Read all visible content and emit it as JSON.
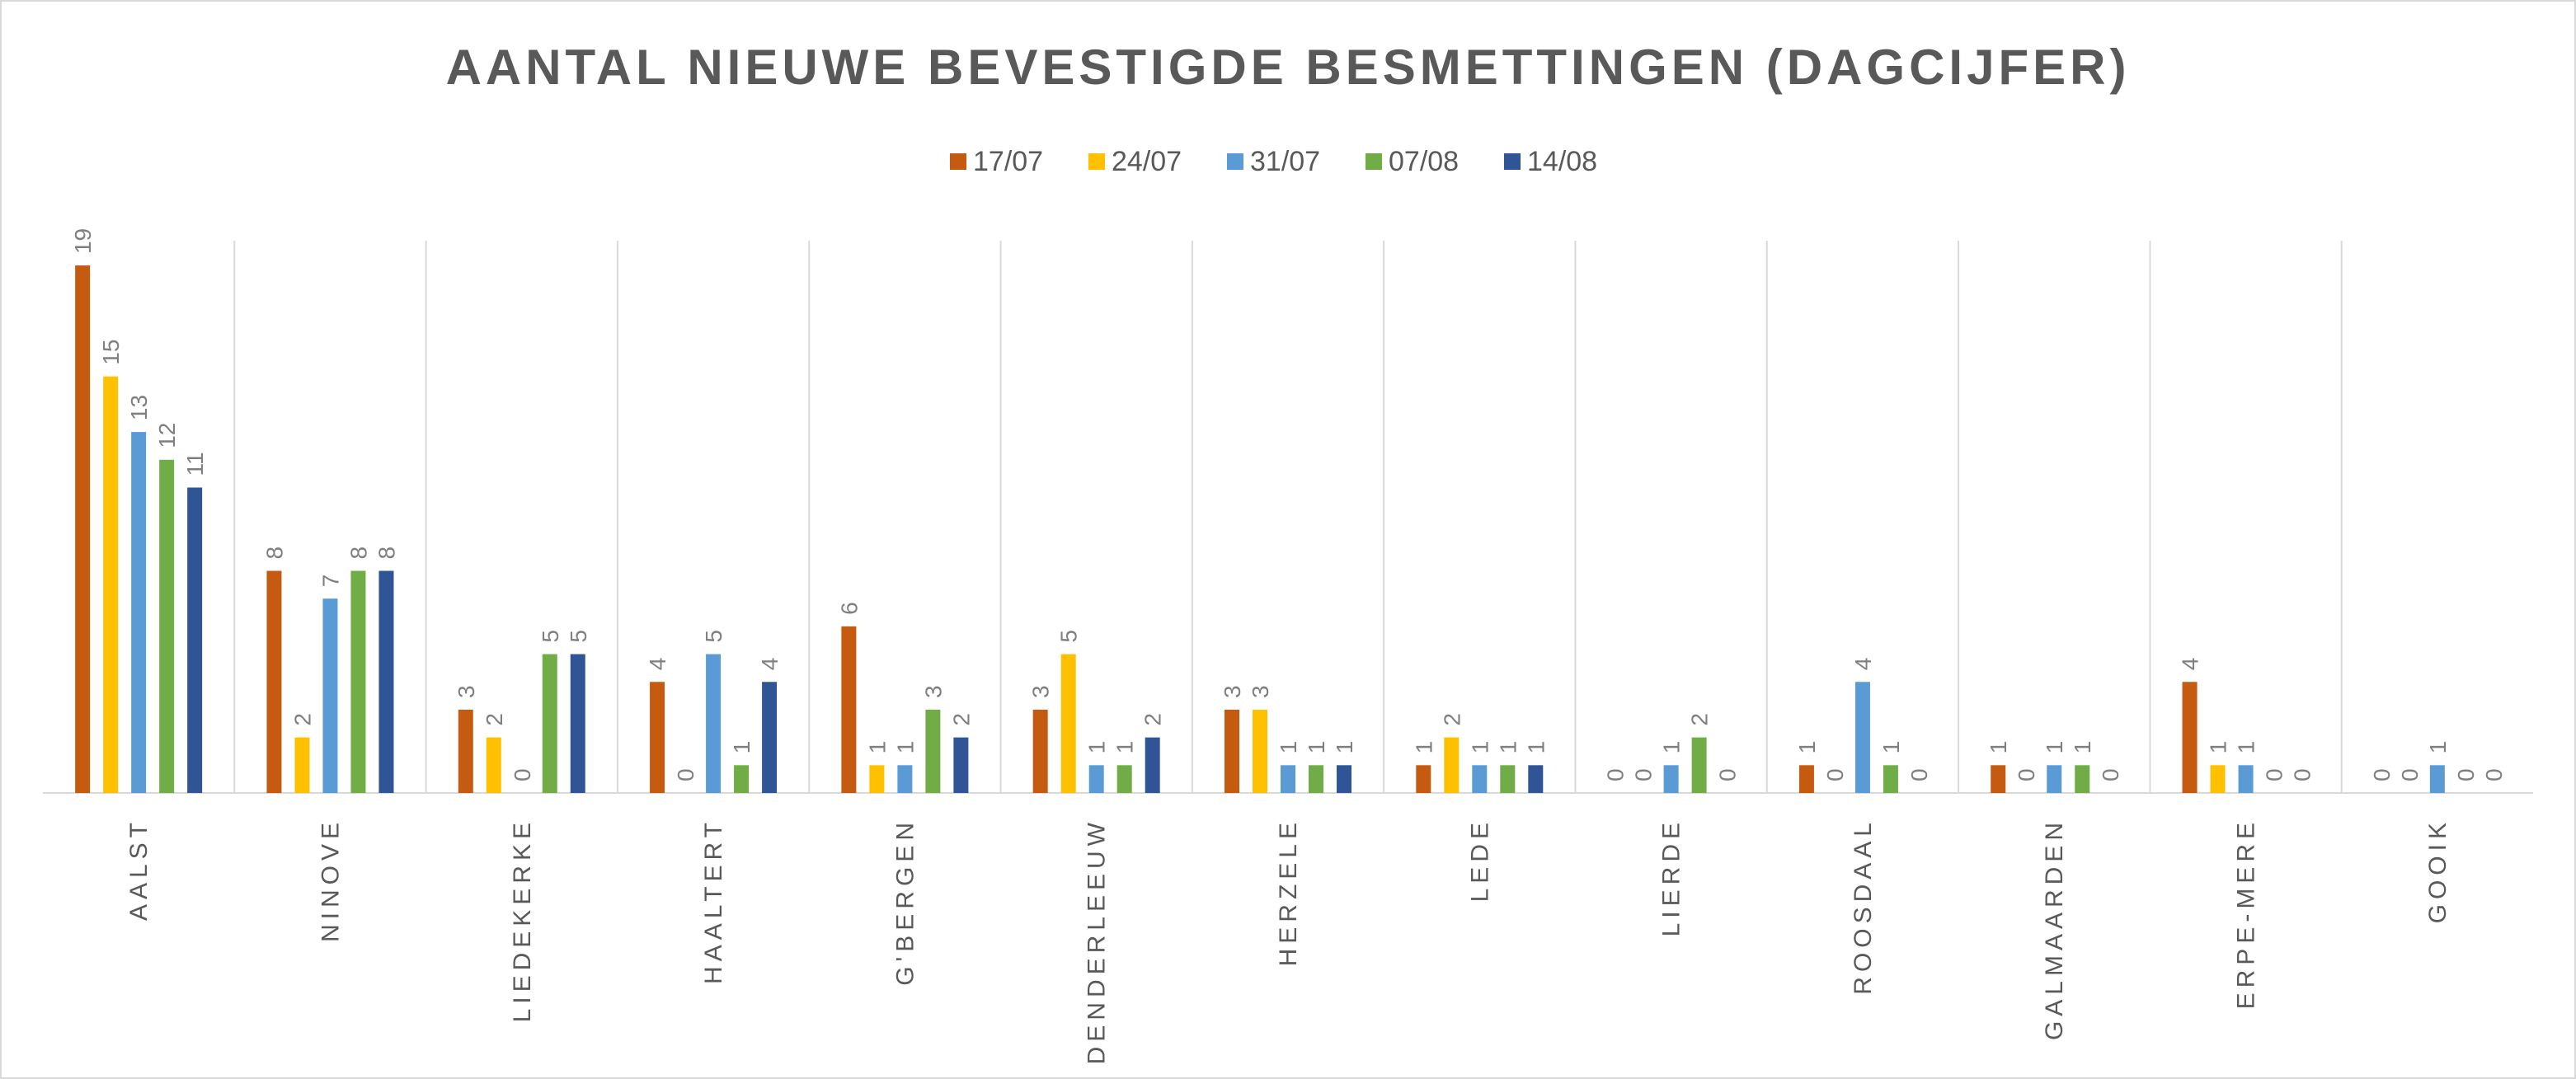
{
  "chart_data": {
    "type": "bar",
    "title": "AANTAL NIEUWE BEVESTIGDE BESMETTINGEN (DAGCIJFER)",
    "xlabel": "",
    "ylabel": "",
    "ylim": [
      0,
      20
    ],
    "grid": false,
    "legend_position": "top",
    "categories": [
      "AALST",
      "NINOVE",
      "LIEDEKERKE",
      "HAALTERT",
      "G'BERGEN",
      "DENDERLEEUW",
      "HERZELE",
      "LEDE",
      "LIERDE",
      "ROOSDAAL",
      "GALMAARDEN",
      "ERPE-MERE",
      "GOOIK"
    ],
    "series": [
      {
        "name": "17/07",
        "color": "#c55a11",
        "values": [
          19,
          8,
          3,
          4,
          6,
          3,
          3,
          1,
          0,
          1,
          1,
          4,
          0
        ]
      },
      {
        "name": "24/07",
        "color": "#ffc000",
        "values": [
          15,
          2,
          2,
          0,
          1,
          5,
          3,
          2,
          0,
          0,
          0,
          1,
          0
        ]
      },
      {
        "name": "31/07",
        "color": "#5b9bd5",
        "values": [
          13,
          7,
          0,
          5,
          1,
          1,
          1,
          1,
          1,
          4,
          1,
          1,
          1
        ]
      },
      {
        "name": "07/08",
        "color": "#70ad47",
        "values": [
          12,
          8,
          5,
          1,
          3,
          1,
          1,
          1,
          2,
          1,
          1,
          0,
          0
        ]
      },
      {
        "name": "14/08",
        "color": "#2f5597",
        "values": [
          11,
          8,
          5,
          4,
          2,
          2,
          1,
          1,
          0,
          0,
          0,
          0,
          0
        ]
      }
    ]
  }
}
